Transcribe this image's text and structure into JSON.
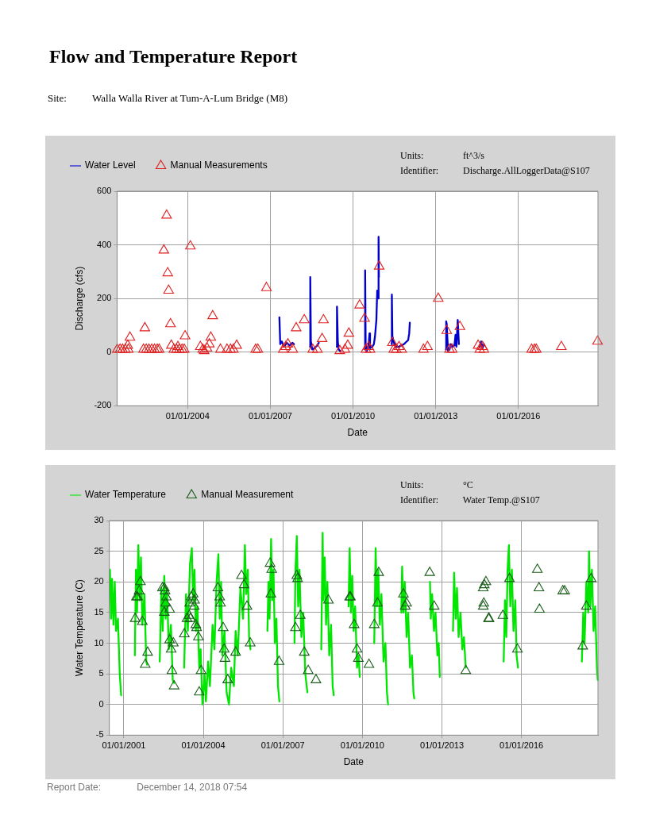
{
  "chart_data": [
    {
      "type": "line",
      "title": "Flow and Temperature Report",
      "subtitle": "Site: Walla Walla River at Tum-A-Lum Bridge (M8)",
      "xlabel": "Date",
      "ylabel": "Discharge (cfs)",
      "annotations": [
        "Units: ft^3/s",
        "Identifier: Discharge.AllLoggerData@S107"
      ],
      "legend": "top left",
      "grid": true,
      "xlim": [
        "2001-06-10",
        "2018-11-20"
      ],
      "xticks": [
        {
          "value": "2004-01-01",
          "label": "01/01/2004"
        },
        {
          "value": "2007-01-01",
          "label": "01/01/2007"
        },
        {
          "value": "2010-01-01",
          "label": "01/01/2010"
        },
        {
          "value": "2013-01-01",
          "label": "01/01/2013"
        },
        {
          "value": "2016-01-01",
          "label": "01/01/2016"
        }
      ],
      "ylim": [
        -200,
        600
      ],
      "yticks": [
        -200,
        0,
        200,
        400,
        600
      ],
      "series": [
        {
          "name": "Water Level",
          "type": "line",
          "color": "#0000cc",
          "marker": "none",
          "line_style": "solid",
          "x": [
            "2007-05-01",
            "2007-05-12",
            "2007-06-02",
            "2007-07-02",
            "2007-08-07",
            "2007-09-13",
            "2007-10-19",
            "2007-11-10",
            "2008-02-01",
            "2008-06-10",
            "2008-06-13",
            "2008-06-21",
            "2008-07-09",
            "2008-08-07",
            "2008-09-13",
            "2008-10-04",
            "2009-01-01",
            "2009-05-30",
            "2009-06-02",
            "2009-06-13",
            "2009-06-24",
            "2009-07-12",
            "2010-01-01",
            "2010-06-06",
            "2010-06-10",
            "2010-06-17",
            "2010-07-02",
            "2010-07-23",
            "2010-08-07",
            "2010-08-14",
            "2010-09-13",
            "2010-10-04",
            "2010-10-19",
            "2010-11-06",
            "2010-11-17",
            "2010-11-28",
            "2010-12-05",
            "2010-12-09",
            "2011-03-01",
            "2011-05-26",
            "2011-05-30",
            "2011-06-06",
            "2011-06-21",
            "2011-07-20",
            "2011-08-25",
            "2011-10-01",
            "2011-11-06",
            "2011-12-13",
            "2012-01-01",
            "2012-01-15",
            "2012-01-23",
            "2012-06-01",
            "2013-05-15",
            "2013-05-19",
            "2013-05-26",
            "2013-06-02",
            "2013-06-13",
            "2013-07-02",
            "2013-07-20",
            "2013-08-07",
            "2013-09-05",
            "2013-09-20",
            "2013-10-01",
            "2013-10-19",
            "2013-11-03",
            "2014-03-01",
            "2014-08-07",
            "2014-08-25",
            "2014-09-13",
            "2014-10-01"
          ],
          "values": [
            130,
            30,
            40,
            20,
            35,
            25,
            35,
            30,
            null,
            20,
            280,
            40,
            10,
            15,
            25,
            35,
            null,
            20,
            170,
            40,
            10,
            5,
            null,
            10,
            305,
            30,
            5,
            20,
            70,
            15,
            20,
            30,
            60,
            120,
            230,
            200,
            430,
            280,
            null,
            30,
            215,
            60,
            40,
            20,
            20,
            25,
            30,
            40,
            45,
            70,
            110,
            null,
            10,
            115,
            105,
            60,
            5,
            10,
            30,
            20,
            25,
            65,
            20,
            120,
            30,
            null,
            20,
            40,
            15,
            30
          ]
        },
        {
          "name": "Manual Measurements",
          "type": "scatter",
          "color": "#e02020",
          "marker": "triangle",
          "x": [
            "2001-06-13",
            "2001-07-20",
            "2001-08-22",
            "2001-09-27",
            "2001-10-30",
            "2001-11-06",
            "2001-11-28",
            "2002-05-26",
            "2002-06-13",
            "2002-07-02",
            "2002-08-07",
            "2002-09-13",
            "2002-10-19",
            "2002-11-25",
            "2002-12-20",
            "2003-02-20",
            "2003-03-29",
            "2003-04-12",
            "2003-04-24",
            "2003-05-19",
            "2003-05-30",
            "2003-07-02",
            "2003-08-07",
            "2003-08-25",
            "2003-09-13",
            "2003-10-19",
            "2003-11-17",
            "2003-11-28",
            "2004-02-06",
            "2004-06-17",
            "2004-07-20",
            "2004-08-07",
            "2004-09-13",
            "2004-10-15",
            "2004-11-03",
            "2004-11-28",
            "2005-03-11",
            "2005-06-06",
            "2005-07-23",
            "2005-08-29",
            "2005-10-12",
            "2006-06-21",
            "2006-07-20",
            "2006-11-10",
            "2007-06-21",
            "2007-07-23",
            "2007-08-22",
            "2007-10-26",
            "2007-12-09",
            "2008-03-25",
            "2008-07-16",
            "2008-09-16",
            "2008-11-17",
            "2008-12-05",
            "2009-07-09",
            "2009-09-16",
            "2009-10-23",
            "2009-11-06",
            "2010-03-29",
            "2010-06-02",
            "2010-06-21",
            "2010-07-27",
            "2010-08-14",
            "2010-12-13",
            "2011-06-06",
            "2011-06-24",
            "2011-07-27",
            "2011-09-02",
            "2011-10-08",
            "2012-07-23",
            "2012-09-13",
            "2013-02-03",
            "2013-05-26",
            "2013-07-02",
            "2013-08-07",
            "2013-11-17",
            "2014-07-16",
            "2014-08-07",
            "2014-09-13",
            "2014-10-01",
            "2016-06-24",
            "2016-07-31",
            "2016-08-25",
            "2017-07-23",
            "2018-11-14"
          ],
          "values": [
            10,
            10,
            10,
            10,
            25,
            10,
            55,
            10,
            90,
            10,
            10,
            10,
            10,
            10,
            10,
            380,
            510,
            295,
            230,
            105,
            25,
            10,
            10,
            20,
            10,
            10,
            10,
            60,
            395,
            20,
            10,
            5,
            15,
            30,
            55,
            135,
            10,
            10,
            10,
            10,
            25,
            10,
            10,
            240,
            10,
            20,
            30,
            10,
            90,
            120,
            10,
            10,
            50,
            120,
            5,
            10,
            25,
            70,
            175,
            125,
            10,
            20,
            10,
            320,
            35,
            10,
            10,
            20,
            10,
            10,
            20,
            200,
            80,
            10,
            10,
            95,
            25,
            10,
            20,
            10,
            10,
            10,
            10,
            20,
            40
          ]
        }
      ]
    },
    {
      "type": "line",
      "xlabel": "Date",
      "ylabel": "Water Temperature (C)",
      "annotations": [
        "Units: °C",
        "Identifier: Water Temp.@S107",
        "Report Date: December 14, 2018 07:54"
      ],
      "legend": "top left",
      "grid": true,
      "xlim": [
        "2000-06-15",
        "2018-11-20"
      ],
      "xticks": [
        {
          "value": "2001-01-01",
          "label": "01/01/2001"
        },
        {
          "value": "2004-01-01",
          "label": "01/01/2004"
        },
        {
          "value": "2007-01-01",
          "label": "01/01/2007"
        },
        {
          "value": "2010-01-01",
          "label": "01/01/2010"
        },
        {
          "value": "2013-01-01",
          "label": "01/01/2013"
        },
        {
          "value": "2016-01-01",
          "label": "01/01/2016"
        }
      ],
      "ylim": [
        -5,
        30
      ],
      "yticks": [
        -5,
        0,
        5,
        10,
        15,
        20,
        25,
        30
      ],
      "series": [
        {
          "name": "Water Temperature",
          "type": "line",
          "color": "#00e600",
          "marker": "none",
          "line_style": "solid",
          "x": [
            "2000-06-24",
            "2000-07-09",
            "2000-07-23",
            "2000-08-11",
            "2000-08-29",
            "2000-09-16",
            "2000-10-12",
            "2000-11-06",
            "2000-11-25",
            "2001-03-01",
            "2001-06-02",
            "2001-06-17",
            "2001-07-02",
            "2001-07-20",
            "2001-08-07",
            "2001-08-25",
            "2001-09-13",
            "2001-10-12",
            "2001-11-06",
            "2001-11-17",
            "2002-03-01",
            "2002-05-11",
            "2002-06-02",
            "2002-06-21",
            "2002-07-12",
            "2002-07-31",
            "2002-08-18",
            "2002-09-13",
            "2002-10-12",
            "2002-11-06",
            "2002-11-25",
            "2003-02-01",
            "2003-04-12",
            "2003-05-08",
            "2003-06-02",
            "2003-07-02",
            "2003-07-27",
            "2003-08-14",
            "2003-09-02",
            "2003-09-20",
            "2003-10-12",
            "2003-11-06",
            "2003-11-25",
            "2003-12-20",
            "2004-01-19",
            "2004-02-06",
            "2004-03-07",
            "2004-04-01",
            "2004-05-08",
            "2004-06-02",
            "2004-07-02",
            "2004-07-27",
            "2004-08-14",
            "2004-09-02",
            "2004-09-20",
            "2004-10-19",
            "2004-11-17",
            "2004-12-20",
            "2005-01-19",
            "2005-02-25",
            "2005-03-21",
            "2005-04-20",
            "2005-05-26",
            "2005-07-02",
            "2005-07-27",
            "2005-08-14",
            "2005-09-05",
            "2005-09-23",
            "2005-10-12",
            "2006-01-15",
            "2006-06-02",
            "2006-06-17",
            "2006-07-02",
            "2006-07-23",
            "2006-08-07",
            "2006-08-25",
            "2006-09-13",
            "2006-10-04",
            "2006-10-26",
            "2006-11-14",
            "2007-03-01",
            "2007-06-10",
            "2007-06-24",
            "2007-07-12",
            "2007-07-31",
            "2007-08-18",
            "2007-09-13",
            "2007-10-08",
            "2007-11-06",
            "2007-12-05",
            "2008-03-01",
            "2008-06-13",
            "2008-07-02",
            "2008-07-12",
            "2008-07-31",
            "2008-08-18",
            "2008-09-05",
            "2008-10-01",
            "2008-10-26",
            "2008-11-17",
            "2008-12-02",
            "2009-03-01",
            "2009-06-24",
            "2009-07-09",
            "2009-07-27",
            "2009-08-14",
            "2009-09-02",
            "2009-09-23",
            "2009-10-19",
            "2009-11-10",
            "2009-11-25",
            "2010-03-01",
            "2010-06-13",
            "2010-07-02",
            "2010-07-20",
            "2010-08-07",
            "2010-08-29",
            "2010-09-20",
            "2010-10-19",
            "2010-11-14",
            "2010-12-05",
            "2010-12-20",
            "2011-03-01",
            "2011-06-21",
            "2011-07-02",
            "2011-07-20",
            "2011-08-07",
            "2011-09-02",
            "2011-09-23",
            "2011-10-19",
            "2011-11-14",
            "2011-12-05",
            "2011-12-16",
            "2012-03-01",
            "2012-07-20",
            "2012-07-31",
            "2012-08-18",
            "2012-09-13",
            "2012-10-04",
            "2012-10-30",
            "2012-11-17",
            "2012-12-02",
            "2013-03-01",
            "2013-06-02",
            "2013-06-17",
            "2013-07-09",
            "2013-07-27",
            "2013-08-18",
            "2013-09-13",
            "2013-10-08",
            "2013-10-30",
            "2013-11-25",
            "2014-06-01",
            "2015-05-01",
            "2015-05-19",
            "2015-06-06",
            "2015-06-24",
            "2015-07-12",
            "2015-07-31",
            "2015-08-22",
            "2015-09-13",
            "2015-10-08",
            "2015-10-26",
            "2015-11-14",
            "2016-06-01",
            "2018-04-12",
            "2018-05-01",
            "2018-05-19",
            "2018-06-13",
            "2018-07-09",
            "2018-07-20",
            "2018-08-07",
            "2018-08-29",
            "2018-09-20",
            "2018-10-12",
            "2018-11-06",
            "2018-11-17"
          ],
          "values": [
            22,
            14,
            20.5,
            13,
            20,
            12,
            14,
            5,
            1.5,
            null,
            8,
            22,
            15,
            26,
            17,
            24,
            13,
            18,
            7,
            6.5,
            null,
            7,
            19,
            12,
            21,
            14,
            19,
            9,
            13,
            4,
            3.5,
            null,
            6,
            18,
            12,
            23,
            25.5,
            17,
            22,
            12,
            16,
            6,
            9,
            0,
            5,
            0.5,
            7,
            3,
            13,
            9,
            20,
            24.5,
            14,
            20,
            8,
            12,
            2,
            0,
            6,
            3,
            12,
            8,
            19,
            14,
            26,
            18,
            22,
            11,
            9,
            null,
            12,
            20,
            14,
            27,
            17,
            22,
            10,
            14,
            3,
            0.5,
            null,
            10,
            22,
            27.5,
            16,
            22,
            11,
            15,
            5,
            2,
            null,
            9,
            28,
            17,
            24,
            13,
            20,
            8,
            13,
            3,
            1.5,
            null,
            16,
            25.5,
            15,
            21,
            12,
            16,
            6,
            8,
            4.5,
            null,
            10,
            25.5,
            16,
            22,
            13,
            18,
            7,
            10,
            2,
            0,
            null,
            15,
            22.5,
            15,
            20,
            11,
            15,
            6,
            8,
            2,
            1,
            null,
            20,
            14,
            18,
            12,
            15,
            8,
            10,
            4.5,
            null,
            12,
            21.5,
            14,
            19,
            11,
            15,
            9,
            11,
            6,
            null,
            7,
            17,
            11,
            22,
            26,
            16,
            22,
            12,
            17,
            8,
            6,
            null,
            7,
            15,
            10,
            20,
            15,
            25,
            16,
            22,
            12,
            16,
            6,
            4
          ]
        },
        {
          "name": "Manual Measurement",
          "type": "scatter",
          "color": "#1a5c1a",
          "marker": "triangle",
          "x": [
            "2001-06-06",
            "2001-06-24",
            "2001-07-09",
            "2001-07-31",
            "2001-08-18",
            "2001-09-13",
            "2001-10-23",
            "2001-11-25",
            "2002-06-17",
            "2002-07-12",
            "2002-07-13",
            "2002-07-23",
            "2002-07-31",
            "2002-08-11",
            "2002-09-23",
            "2002-09-24",
            "2002-10-15",
            "2002-10-26",
            "2002-11-14",
            "2002-11-25",
            "2003-04-15",
            "2003-05-22",
            "2003-06-21",
            "2003-06-28",
            "2003-07-09",
            "2003-07-20",
            "2003-08-14",
            "2003-08-29",
            "2003-09-02",
            "2003-09-20",
            "2003-10-01",
            "2003-10-26",
            "2003-11-06",
            "2003-12-02",
            "2004-07-20",
            "2004-08-14",
            "2004-08-25",
            "2004-10-01",
            "2004-10-15",
            "2004-10-26",
            "2004-12-02",
            "2005-03-21",
            "2005-06-10",
            "2005-07-16",
            "2005-08-25",
            "2005-10-08",
            "2006-07-09",
            "2006-07-20",
            "2006-07-31",
            "2006-11-10",
            "2007-06-24",
            "2007-07-12",
            "2007-07-23",
            "2007-08-29",
            "2007-10-23",
            "2007-12-16",
            "2008-04-01",
            "2008-09-20",
            "2009-07-09",
            "2009-07-20",
            "2009-09-09",
            "2009-10-19",
            "2009-11-06",
            "2010-04-01",
            "2010-06-13",
            "2010-07-27",
            "2010-08-14",
            "2011-07-20",
            "2011-08-14",
            "2011-09-02",
            "2012-07-16",
            "2012-09-16",
            "2013-11-25",
            "2014-07-23",
            "2014-07-24",
            "2014-07-31",
            "2014-08-07",
            "2014-08-29",
            "2014-10-04",
            "2014-10-12",
            "2015-04-20",
            "2015-07-20",
            "2015-11-06",
            "2016-08-07",
            "2016-08-29",
            "2016-09-05",
            "2017-07-23",
            "2017-08-18",
            "2018-04-24",
            "2018-06-13",
            "2018-08-18"
          ],
          "values": [
            14,
            17.5,
            17.5,
            18.5,
            20,
            13.5,
            6.5,
            8.5,
            19,
            19,
            15,
            18.5,
            16.5,
            17.5,
            15.5,
            10.5,
            9,
            5.5,
            10,
            3,
            11.5,
            14,
            14.5,
            16.5,
            14,
            17.5,
            18,
            16,
            17,
            13,
            12.5,
            11,
            2,
            5.5,
            19,
            17.5,
            16.5,
            12.5,
            9,
            7.5,
            4,
            8.5,
            21,
            19.5,
            16,
            10,
            23,
            18,
            22,
            7,
            12.5,
            21,
            20.5,
            14.5,
            8.5,
            5.5,
            4,
            17,
            17.5,
            17.5,
            13,
            9,
            7.5,
            6.5,
            13,
            16.5,
            21.5,
            18,
            16,
            16.5,
            21.5,
            16,
            5.5,
            19,
            16,
            16.5,
            19.5,
            20,
            14,
            14,
            14.5,
            20.5,
            9,
            22,
            19,
            15.5,
            18.5,
            18.5,
            9.5,
            16,
            20.5
          ]
        }
      ]
    }
  ]
}
